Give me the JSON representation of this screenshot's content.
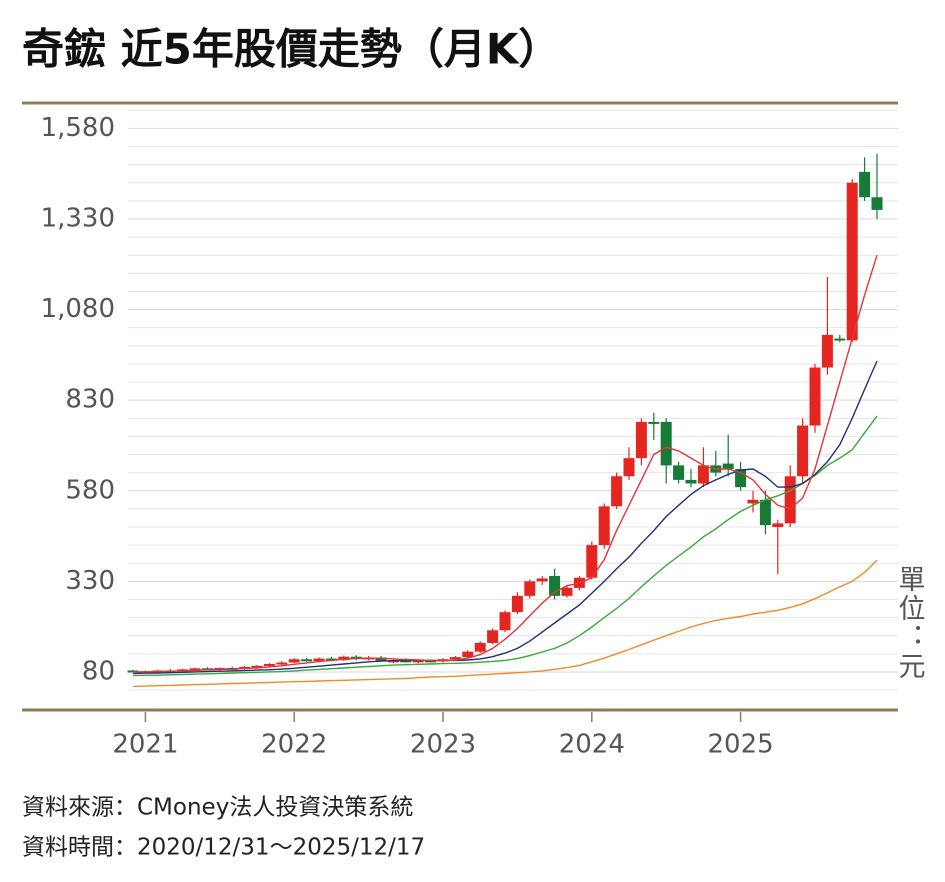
{
  "chart_data": {
    "type": "candlestick",
    "title": "奇鋐 近5年股價走勢（月K）",
    "unit_label": "單位：元",
    "source": "資料來源：CMoney法人投資決策系統",
    "date_note": "資料時間：2020/12/31～2025/12/17",
    "categories": [
      null,
      "2021",
      null,
      null,
      null,
      null,
      null,
      null,
      null,
      null,
      null,
      null,
      null,
      "2022",
      null,
      null,
      null,
      null,
      null,
      null,
      null,
      null,
      null,
      null,
      null,
      "2023",
      null,
      null,
      null,
      null,
      null,
      null,
      null,
      null,
      null,
      null,
      null,
      "2024",
      null,
      null,
      null,
      null,
      null,
      null,
      null,
      null,
      null,
      null,
      null,
      "2025",
      null,
      null,
      null,
      null,
      null,
      null,
      null,
      null,
      null,
      null,
      null
    ],
    "open": [
      84,
      80,
      82,
      84,
      83,
      87,
      90,
      86,
      91,
      89,
      94,
      97,
      102,
      106,
      115,
      110,
      117,
      113,
      122,
      116,
      120,
      111,
      112,
      108,
      112,
      109,
      115,
      121,
      136,
      160,
      195,
      245,
      290,
      330,
      345,
      290,
      312,
      340,
      430,
      537,
      620,
      670,
      770,
      770,
      650,
      610,
      600,
      650,
      655,
      640,
      545,
      555,
      480,
      490,
      620,
      760,
      920,
      1000,
      995,
      1460,
      1390
    ],
    "high": [
      86,
      84,
      86,
      88,
      89,
      92,
      93,
      92,
      95,
      96,
      99,
      104,
      110,
      118,
      118,
      120,
      122,
      125,
      126,
      124,
      124,
      116,
      118,
      115,
      114,
      118,
      124,
      140,
      165,
      200,
      250,
      300,
      335,
      345,
      365,
      320,
      345,
      440,
      545,
      630,
      700,
      780,
      795,
      780,
      660,
      640,
      700,
      690,
      735,
      660,
      580,
      580,
      500,
      650,
      780,
      930,
      1170,
      1010,
      1440,
      1500,
      1510
    ],
    "low": [
      80,
      77,
      79,
      80,
      80,
      84,
      85,
      84,
      87,
      87,
      90,
      94,
      98,
      104,
      108,
      106,
      110,
      110,
      112,
      112,
      108,
      104,
      106,
      104,
      106,
      106,
      112,
      118,
      132,
      156,
      190,
      240,
      282,
      320,
      280,
      285,
      305,
      335,
      420,
      530,
      610,
      650,
      720,
      600,
      600,
      590,
      590,
      620,
      620,
      580,
      520,
      460,
      350,
      480,
      600,
      740,
      900,
      990,
      990,
      1380,
      1330
    ],
    "close": [
      82,
      82,
      84,
      83,
      87,
      90,
      86,
      91,
      89,
      94,
      97,
      102,
      106,
      115,
      110,
      117,
      113,
      122,
      116,
      120,
      111,
      112,
      108,
      112,
      109,
      115,
      121,
      136,
      160,
      195,
      245,
      290,
      330,
      338,
      290,
      312,
      340,
      430,
      537,
      620,
      670,
      770,
      768,
      650,
      610,
      600,
      650,
      630,
      640,
      590,
      555,
      485,
      490,
      620,
      760,
      920,
      1010,
      995,
      1430,
      1390,
      1355
    ],
    "up_color": "#e52620",
    "down_color": "#167a38",
    "series": [
      {
        "color": "#e0363a",
        "values": [
          80,
          80,
          81,
          82,
          83,
          84,
          86,
          87,
          88,
          90,
          91,
          94,
          97,
          101,
          105,
          109,
          112,
          115,
          117,
          118,
          118,
          116,
          114,
          113,
          112,
          111,
          113,
          118,
          128,
          145,
          170,
          200,
          235,
          270,
          300,
          318,
          325,
          340,
          390,
          470,
          540,
          610,
          680,
          700,
          690,
          670,
          650,
          640,
          640,
          630,
          610,
          570,
          540,
          530,
          560,
          640,
          760,
          880,
          1000,
          1120,
          1230
        ]
      },
      {
        "color": "#22307a",
        "values": [
          76,
          77,
          77,
          78,
          79,
          80,
          81,
          82,
          83,
          84,
          85,
          86,
          88,
          90,
          93,
          96,
          99,
          102,
          105,
          108,
          110,
          111,
          112,
          112,
          112,
          112,
          112,
          113,
          116,
          122,
          132,
          145,
          165,
          190,
          215,
          240,
          265,
          297,
          330,
          365,
          397,
          435,
          470,
          509,
          540,
          570,
          594,
          610,
          625,
          637,
          640,
          620,
          590,
          590,
          600,
          625,
          660,
          707,
          780,
          860,
          938
        ]
      },
      {
        "color": "#3aa83a",
        "values": [
          70,
          71,
          71,
          72,
          73,
          74,
          75,
          76,
          77,
          78,
          79,
          80,
          81,
          83,
          85,
          87,
          89,
          91,
          93,
          95,
          97,
          99,
          100,
          101,
          102,
          103,
          104,
          105,
          107,
          109,
          112,
          117,
          125,
          135,
          145,
          160,
          180,
          204,
          230,
          255,
          283,
          315,
          345,
          374,
          400,
          425,
          453,
          475,
          500,
          523,
          540,
          555,
          566,
          580,
          600,
          622,
          650,
          670,
          693,
          740,
          786
        ]
      },
      {
        "color": "#f08a28",
        "values": [
          40,
          41,
          42,
          43,
          44,
          45,
          46,
          47,
          48,
          49,
          50,
          51,
          52,
          53,
          54,
          55,
          56,
          57,
          58,
          59,
          60,
          61,
          62,
          64,
          66,
          67,
          68,
          70,
          72,
          74,
          76,
          78,
          80,
          83,
          87,
          92,
          98,
          108,
          118,
          130,
          142,
          155,
          168,
          180,
          192,
          204,
          214,
          222,
          228,
          233,
          240,
          245,
          250,
          258,
          268,
          282,
          298,
          315,
          330,
          355,
          388
        ]
      }
    ],
    "ylim": [
      -25,
      1650
    ],
    "yticks": [
      80,
      330,
      580,
      830,
      {
        "value": 1080,
        "label": "1,080"
      },
      {
        "value": 1330,
        "label": "1,330"
      },
      {
        "value": 1580,
        "label": "1,580"
      }
    ],
    "minor_yticks": [
      30,
      130,
      180,
      230,
      280,
      380,
      430,
      480,
      530,
      630,
      680,
      730,
      780,
      880,
      930,
      980,
      1030,
      1130,
      1180,
      1230,
      1280,
      1380,
      1430,
      1480,
      1530,
      1630
    ],
    "grid": true
  }
}
